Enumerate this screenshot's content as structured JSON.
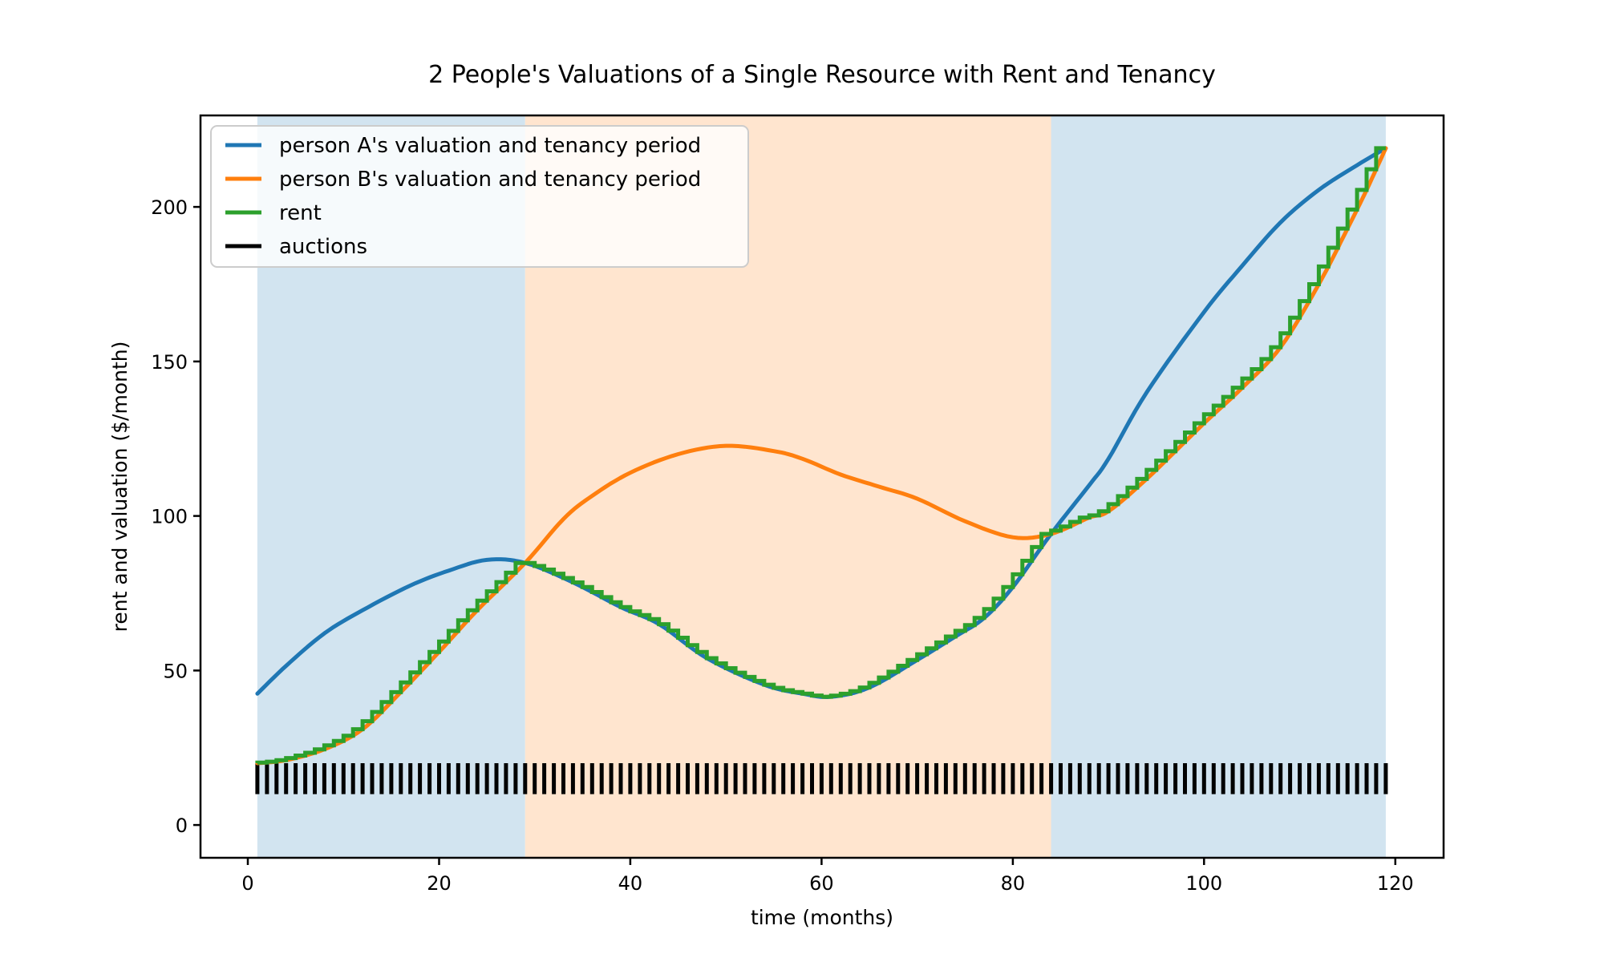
{
  "chart_data": {
    "type": "line",
    "title": "2 People's Valuations of a Single Resource with Rent and Tenancy",
    "xlabel": "time (months)",
    "ylabel": "rent and valuation ($/month)",
    "xlim": [
      -4.95,
      125.05
    ],
    "ylim": [
      -10.6,
      229.6
    ],
    "xticks": [
      0,
      20,
      40,
      60,
      80,
      100,
      120
    ],
    "yticks": [
      0,
      50,
      100,
      150,
      200
    ],
    "grid": false,
    "legend_position": "upper left",
    "series": [
      {
        "name": "person A's valuation and tenancy period",
        "color": "#1f77b4",
        "kind": "smooth",
        "points": [
          [
            1,
            42.5
          ],
          [
            4,
            51.5
          ],
          [
            8,
            62
          ],
          [
            12,
            69.5
          ],
          [
            17,
            77.5
          ],
          [
            21,
            82.3
          ],
          [
            25,
            85.8
          ],
          [
            29,
            84.8
          ],
          [
            34,
            78.5
          ],
          [
            39,
            70.5
          ],
          [
            43,
            65
          ],
          [
            48,
            54
          ],
          [
            54,
            45.4
          ],
          [
            58,
            42.5
          ],
          [
            61,
            41.5
          ],
          [
            65,
            44.5
          ],
          [
            70,
            53.4
          ],
          [
            74,
            61
          ],
          [
            77,
            67
          ],
          [
            80,
            77
          ],
          [
            84,
            94.2
          ],
          [
            88,
            110
          ],
          [
            90,
            118.5
          ],
          [
            94,
            140
          ],
          [
            100,
            166
          ],
          [
            104,
            181
          ],
          [
            108,
            195
          ],
          [
            112,
            205.5
          ],
          [
            116,
            213.5
          ],
          [
            119,
            219
          ]
        ]
      },
      {
        "name": "person B's valuation and tenancy period",
        "color": "#ff7f0e",
        "kind": "smooth",
        "points": [
          [
            1,
            20
          ],
          [
            4,
            21
          ],
          [
            8,
            24.5
          ],
          [
            12,
            31
          ],
          [
            16,
            43
          ],
          [
            20,
            56
          ],
          [
            24,
            69.5
          ],
          [
            29,
            84.8
          ],
          [
            33,
            99
          ],
          [
            36,
            106.5
          ],
          [
            40,
            114
          ],
          [
            45,
            120
          ],
          [
            50,
            122.7
          ],
          [
            55,
            121
          ],
          [
            58,
            118.5
          ],
          [
            62,
            113.4
          ],
          [
            66,
            109.5
          ],
          [
            70,
            105.6
          ],
          [
            75,
            98.3
          ],
          [
            80,
            93.1
          ],
          [
            84,
            94.2
          ],
          [
            88,
            99.5
          ],
          [
            90,
            101.5
          ],
          [
            94,
            112
          ],
          [
            100,
            130
          ],
          [
            104,
            141.5
          ],
          [
            108,
            154.6
          ],
          [
            112,
            175
          ],
          [
            115,
            193
          ],
          [
            117,
            205.5
          ],
          [
            119,
            219
          ]
        ]
      },
      {
        "name": "rent",
        "color": "#2ca02c",
        "kind": "step",
        "derivation": "monthly step function holding the lower (second-price) valuation of A and B, months 1 to 119"
      },
      {
        "name": "auctions",
        "color": "#000000",
        "kind": "event-marks",
        "marks": {
          "months_from": 1,
          "months_to": 119,
          "y_from": 10,
          "y_to": 20
        }
      }
    ],
    "tenancy_regions": [
      {
        "tenant": "A",
        "from_month": 1,
        "to_month": 29,
        "fill": "rgba(31,119,180,0.2)"
      },
      {
        "tenant": "B",
        "from_month": 29,
        "to_month": 84,
        "fill": "rgba(255,127,14,0.2)"
      },
      {
        "tenant": "A",
        "from_month": 84,
        "to_month": 119,
        "fill": "rgba(31,119,180,0.2)"
      }
    ]
  }
}
